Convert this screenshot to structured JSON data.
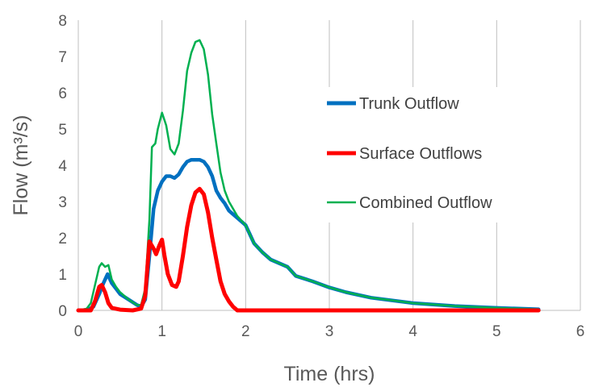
{
  "chart_data": {
    "type": "line",
    "title": "",
    "xlabel": "Time (hrs)",
    "ylabel": "Flow (m³/s)",
    "xlim": [
      0,
      6
    ],
    "ylim": [
      0,
      8
    ],
    "x_ticks": [
      "0",
      "1",
      "2",
      "3",
      "4",
      "5",
      "6"
    ],
    "y_ticks": [
      "0",
      "1",
      "2",
      "3",
      "4",
      "5",
      "6",
      "7",
      "8"
    ],
    "grid": "vertical",
    "legend_position": "right",
    "series": [
      {
        "name": "Trunk Outflow",
        "color": "#0070C0",
        "values": [
          [
            0,
            0
          ],
          [
            0.1,
            0
          ],
          [
            0.18,
            0.1
          ],
          [
            0.25,
            0.45
          ],
          [
            0.3,
            0.75
          ],
          [
            0.35,
            1.0
          ],
          [
            0.4,
            0.75
          ],
          [
            0.45,
            0.6
          ],
          [
            0.5,
            0.45
          ],
          [
            0.6,
            0.3
          ],
          [
            0.7,
            0.15
          ],
          [
            0.75,
            0.1
          ],
          [
            0.8,
            0.3
          ],
          [
            0.85,
            1.5
          ],
          [
            0.9,
            2.8
          ],
          [
            0.95,
            3.3
          ],
          [
            1.0,
            3.55
          ],
          [
            1.05,
            3.7
          ],
          [
            1.1,
            3.7
          ],
          [
            1.15,
            3.65
          ],
          [
            1.2,
            3.75
          ],
          [
            1.25,
            3.95
          ],
          [
            1.3,
            4.1
          ],
          [
            1.35,
            4.15
          ],
          [
            1.4,
            4.15
          ],
          [
            1.45,
            4.15
          ],
          [
            1.5,
            4.1
          ],
          [
            1.55,
            3.95
          ],
          [
            1.6,
            3.7
          ],
          [
            1.65,
            3.3
          ],
          [
            1.7,
            3.1
          ],
          [
            1.75,
            2.95
          ],
          [
            1.8,
            2.75
          ],
          [
            1.9,
            2.55
          ],
          [
            2.0,
            2.35
          ],
          [
            2.05,
            2.1
          ],
          [
            2.1,
            1.85
          ],
          [
            2.2,
            1.6
          ],
          [
            2.3,
            1.4
          ],
          [
            2.5,
            1.2
          ],
          [
            2.6,
            0.95
          ],
          [
            2.8,
            0.8
          ],
          [
            3.0,
            0.63
          ],
          [
            3.2,
            0.5
          ],
          [
            3.5,
            0.35
          ],
          [
            4.0,
            0.2
          ],
          [
            4.5,
            0.12
          ],
          [
            5.0,
            0.07
          ],
          [
            5.5,
            0.03
          ]
        ]
      },
      {
        "name": "Surface Outflows",
        "color": "#FF0000",
        "values": [
          [
            0,
            0
          ],
          [
            0.15,
            0
          ],
          [
            0.2,
            0.25
          ],
          [
            0.25,
            0.65
          ],
          [
            0.28,
            0.7
          ],
          [
            0.32,
            0.5
          ],
          [
            0.36,
            0.2
          ],
          [
            0.4,
            0.07
          ],
          [
            0.5,
            0.02
          ],
          [
            0.65,
            0
          ],
          [
            0.75,
            0.05
          ],
          [
            0.8,
            0.4
          ],
          [
            0.85,
            1.9
          ],
          [
            0.9,
            1.7
          ],
          [
            0.93,
            1.55
          ],
          [
            0.97,
            1.8
          ],
          [
            1.0,
            1.95
          ],
          [
            1.03,
            1.5
          ],
          [
            1.07,
            1.0
          ],
          [
            1.12,
            0.7
          ],
          [
            1.17,
            0.65
          ],
          [
            1.2,
            0.8
          ],
          [
            1.25,
            1.5
          ],
          [
            1.3,
            2.3
          ],
          [
            1.35,
            2.9
          ],
          [
            1.4,
            3.25
          ],
          [
            1.45,
            3.35
          ],
          [
            1.5,
            3.2
          ],
          [
            1.55,
            2.7
          ],
          [
            1.6,
            2.0
          ],
          [
            1.65,
            1.4
          ],
          [
            1.7,
            0.8
          ],
          [
            1.75,
            0.45
          ],
          [
            1.8,
            0.25
          ],
          [
            1.85,
            0.1
          ],
          [
            1.9,
            0
          ],
          [
            2.0,
            0
          ],
          [
            3.0,
            0
          ],
          [
            4.0,
            0
          ],
          [
            5.0,
            0
          ],
          [
            5.5,
            0
          ]
        ]
      },
      {
        "name": "Combined Outflow",
        "color": "#00B050",
        "values": [
          [
            0,
            0
          ],
          [
            0.1,
            0.05
          ],
          [
            0.15,
            0.2
          ],
          [
            0.2,
            0.7
          ],
          [
            0.25,
            1.2
          ],
          [
            0.28,
            1.3
          ],
          [
            0.32,
            1.2
          ],
          [
            0.36,
            1.25
          ],
          [
            0.4,
            0.85
          ],
          [
            0.45,
            0.65
          ],
          [
            0.5,
            0.5
          ],
          [
            0.6,
            0.3
          ],
          [
            0.7,
            0.15
          ],
          [
            0.75,
            0.15
          ],
          [
            0.8,
            0.6
          ],
          [
            0.85,
            2.5
          ],
          [
            0.88,
            4.5
          ],
          [
            0.92,
            4.6
          ],
          [
            0.95,
            5.0
          ],
          [
            1.0,
            5.45
          ],
          [
            1.05,
            5.1
          ],
          [
            1.1,
            4.45
          ],
          [
            1.15,
            4.3
          ],
          [
            1.2,
            4.6
          ],
          [
            1.25,
            5.5
          ],
          [
            1.3,
            6.6
          ],
          [
            1.35,
            7.1
          ],
          [
            1.4,
            7.4
          ],
          [
            1.45,
            7.45
          ],
          [
            1.5,
            7.2
          ],
          [
            1.55,
            6.5
          ],
          [
            1.6,
            5.4
          ],
          [
            1.65,
            4.6
          ],
          [
            1.7,
            3.8
          ],
          [
            1.75,
            3.3
          ],
          [
            1.8,
            3.0
          ],
          [
            1.85,
            2.8
          ],
          [
            1.9,
            2.6
          ],
          [
            2.0,
            2.35
          ],
          [
            2.05,
            2.1
          ],
          [
            2.1,
            1.85
          ],
          [
            2.2,
            1.6
          ],
          [
            2.3,
            1.4
          ],
          [
            2.5,
            1.2
          ],
          [
            2.6,
            0.95
          ],
          [
            2.8,
            0.8
          ],
          [
            3.0,
            0.63
          ],
          [
            3.2,
            0.5
          ],
          [
            3.5,
            0.35
          ],
          [
            4.0,
            0.2
          ],
          [
            4.5,
            0.12
          ],
          [
            5.0,
            0.07
          ],
          [
            5.5,
            0.03
          ]
        ]
      }
    ]
  }
}
